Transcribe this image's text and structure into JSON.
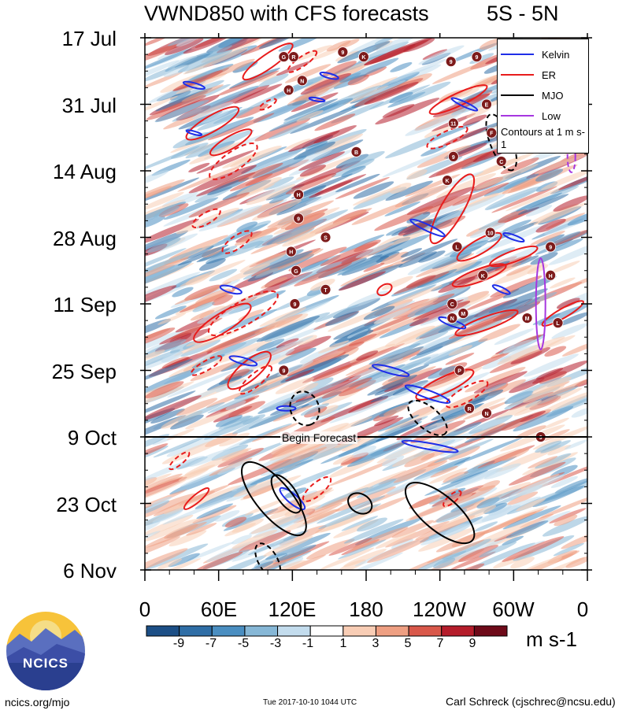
{
  "chart_data": {
    "type": "heatmap",
    "title": "VWND850 with CFS forecasts",
    "latitude_band": "5S - 5N",
    "y_tick_labels": [
      "17 Jul",
      "31 Jul",
      "14 Aug",
      "28 Aug",
      "11 Sep",
      "25 Sep",
      "9 Oct",
      "23 Oct",
      "6 Nov"
    ],
    "x_tick_labels": [
      "0",
      "60E",
      "120E",
      "180",
      "120W",
      "60W",
      "0"
    ],
    "x_tick_lon": [
      0,
      60,
      120,
      180,
      240,
      300,
      360
    ],
    "y_tick_day": [
      0,
      14,
      28,
      42,
      56,
      70,
      84,
      98,
      112
    ],
    "x_range_lon": [
      0,
      360
    ],
    "y_range_day": [
      0,
      112
    ],
    "forecast_start_day": 84,
    "forecast_label": "Begin Forecast",
    "colorbar": {
      "labels": [
        "-9",
        "-7",
        "-5",
        "-3",
        "-1",
        "1",
        "3",
        "5",
        "7",
        "9"
      ],
      "colors": [
        "#1c4f86",
        "#2f6ea6",
        "#4a8ec1",
        "#86b7d6",
        "#c3dced",
        "#ffffff",
        "#f8cdb5",
        "#ee9f82",
        "#d9584a",
        "#b51d2b",
        "#6e0a19"
      ],
      "units": "m s-1"
    },
    "legend": [
      {
        "name": "Kelvin",
        "color": "#1f2ee8",
        "style": "solid"
      },
      {
        "name": "ER",
        "color": "#e81c1c",
        "style": "solid"
      },
      {
        "name": "MJO",
        "color": "#000000",
        "style": "solid"
      },
      {
        "name": "Low",
        "color": "#a637e0",
        "style": "solid"
      }
    ],
    "legend_note": "Contours at 1 m s-1",
    "storm_markers": [
      {
        "lon": 121,
        "day": 4,
        "label": "R"
      },
      {
        "lon": 113,
        "day": 4,
        "label": "G"
      },
      {
        "lon": 161,
        "day": 3,
        "label": "9"
      },
      {
        "lon": 178,
        "day": 4,
        "label": "K"
      },
      {
        "lon": 249,
        "day": 5,
        "label": "9"
      },
      {
        "lon": 270,
        "day": 4,
        "label": "9"
      },
      {
        "lon": 128,
        "day": 9,
        "label": "N"
      },
      {
        "lon": 117,
        "day": 11,
        "label": "H"
      },
      {
        "lon": 278,
        "day": 14,
        "label": "E"
      },
      {
        "lon": 251,
        "day": 18,
        "label": "11"
      },
      {
        "lon": 282,
        "day": 20,
        "label": "F"
      },
      {
        "lon": 172,
        "day": 24,
        "label": "B"
      },
      {
        "lon": 251,
        "day": 25,
        "label": "9"
      },
      {
        "lon": 246,
        "day": 30,
        "label": "K"
      },
      {
        "lon": 125,
        "day": 33,
        "label": "H"
      },
      {
        "lon": 125,
        "day": 38,
        "label": "9"
      },
      {
        "lon": 147,
        "day": 42,
        "label": "S"
      },
      {
        "lon": 281,
        "day": 41,
        "label": "10"
      },
      {
        "lon": 254,
        "day": 44,
        "label": "L"
      },
      {
        "lon": 119,
        "day": 45,
        "label": "H"
      },
      {
        "lon": 123,
        "day": 49,
        "label": "G"
      },
      {
        "lon": 275,
        "day": 50,
        "label": "K"
      },
      {
        "lon": 330,
        "day": 50,
        "label": "H"
      },
      {
        "lon": 330,
        "day": 44,
        "label": "9"
      },
      {
        "lon": 147,
        "day": 53,
        "label": "T"
      },
      {
        "lon": 122,
        "day": 56,
        "label": "9"
      },
      {
        "lon": 250,
        "day": 56,
        "label": "C"
      },
      {
        "lon": 250,
        "day": 59,
        "label": "N"
      },
      {
        "lon": 259,
        "day": 58,
        "label": "M"
      },
      {
        "lon": 311,
        "day": 59,
        "label": "M"
      },
      {
        "lon": 336,
        "day": 60,
        "label": "L"
      },
      {
        "lon": 113,
        "day": 70,
        "label": "9"
      },
      {
        "lon": 256,
        "day": 70,
        "label": "P"
      },
      {
        "lon": 264,
        "day": 78,
        "label": "R"
      },
      {
        "lon": 278,
        "day": 79,
        "label": "N"
      },
      {
        "lon": 115,
        "day": 84,
        "label": "23"
      },
      {
        "lon": 322,
        "day": 84,
        "label": "9"
      },
      {
        "lon": 290,
        "day": 26,
        "label": "C"
      }
    ]
  },
  "footer": {
    "site": "ncics.org/mjo",
    "timestamp": "Tue 2017-10-10 1044 UTC",
    "author": "Carl Schreck (cjschrec@ncsu.edu)",
    "logo_text": "NCICS"
  }
}
